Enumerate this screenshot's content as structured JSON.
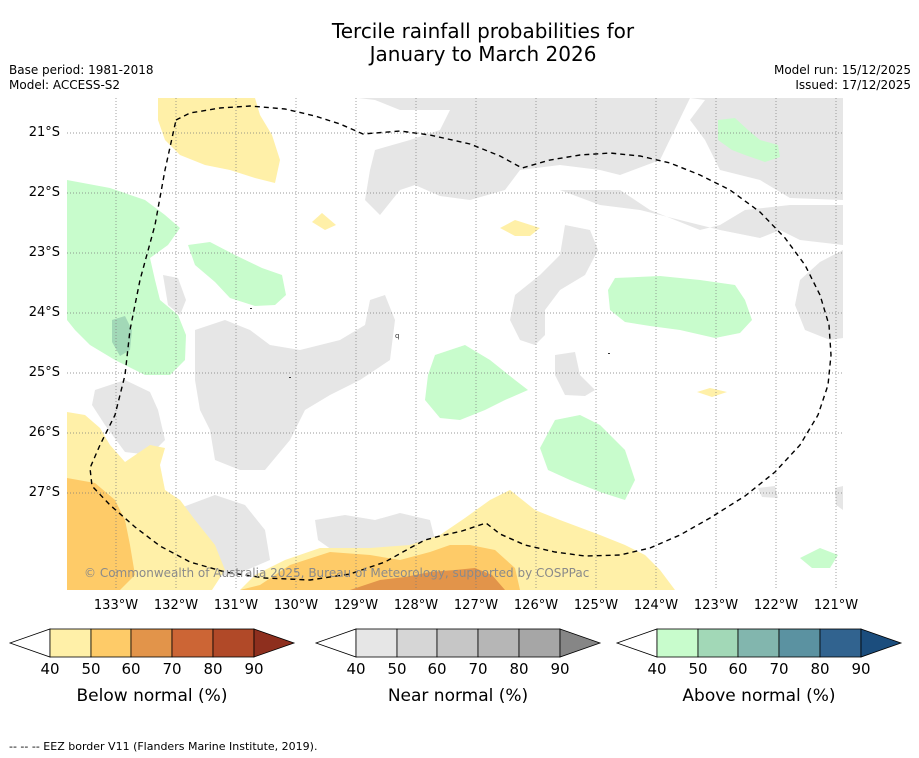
{
  "title": {
    "line1": "Tercile rainfall probabilities for",
    "line2": "January to March 2026"
  },
  "meta": {
    "base_period": "Base period: 1981-2018",
    "model": "Model: ACCESS-S2",
    "model_run": "Model run: 15/12/2025",
    "issued": "Issued: 17/12/2025"
  },
  "copyright": "© Commonwealth of Australia 2025, Bureau of Meteorology, supported by COSPPac",
  "lat_labels": [
    "21°S",
    "22°S",
    "23°S",
    "24°S",
    "25°S",
    "26°S",
    "27°S"
  ],
  "lon_labels": [
    "133°W",
    "132°W",
    "131°W",
    "130°W",
    "129°W",
    "128°W",
    "127°W",
    "126°W",
    "125°W",
    "124°W",
    "123°W",
    "122°W",
    "121°W"
  ],
  "colorbars": {
    "below": {
      "label": "Below normal (%)",
      "ticks": [
        "40",
        "50",
        "60",
        "70",
        "80",
        "90"
      ],
      "colors": [
        "#fff0a8",
        "#fecb68",
        "#e2944a",
        "#cc6535",
        "#b14928",
        "#8e2f1e"
      ]
    },
    "near": {
      "label": "Near normal (%)",
      "ticks": [
        "40",
        "50",
        "60",
        "70",
        "80",
        "90"
      ],
      "colors": [
        "#e6e6e6",
        "#d6d6d6",
        "#c6c6c6",
        "#b6b6b6",
        "#a6a6a6",
        "#868686"
      ]
    },
    "above": {
      "label": "Above normal (%)",
      "ticks": [
        "40",
        "50",
        "60",
        "70",
        "80",
        "90"
      ],
      "colors": [
        "#c8fccc",
        "#a2d8b7",
        "#82b6ae",
        "#5b92a1",
        "#31638f",
        "#1b4d7d"
      ]
    }
  },
  "footer": "--  --  -- EEZ border V11 (Flanders Marine Institute, 2019)."
}
